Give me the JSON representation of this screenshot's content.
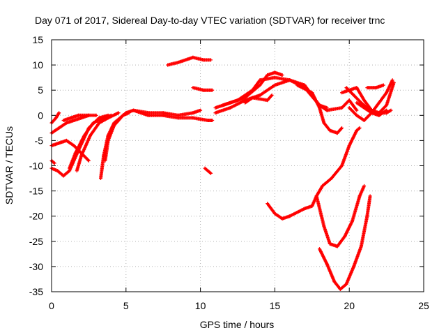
{
  "chart_data": {
    "type": "scatter",
    "title": "Day 071 of 2017, Sidereal Day-to-day VTEC variation (SDTVAR) for receiver trnc",
    "xlabel": "GPS time / hours",
    "ylabel": "SDTVAR / TECUs",
    "xlim": [
      0,
      25
    ],
    "ylim": [
      -35,
      15
    ],
    "xticks": [
      0,
      5,
      10,
      15,
      20,
      25
    ],
    "yticks": [
      -35,
      -30,
      -25,
      -20,
      -15,
      -10,
      -5,
      0,
      5,
      10,
      15
    ],
    "grid": true,
    "legend": "none",
    "marker": "plus",
    "color": "#ff0000",
    "series": [
      {
        "points": [
          [
            0.0,
            -1.5
          ],
          [
            0.3,
            -0.5
          ],
          [
            0.5,
            0.5
          ]
        ]
      },
      {
        "points": [
          [
            0.0,
            -3.5
          ],
          [
            0.5,
            -2.5
          ],
          [
            1.0,
            -1.5
          ],
          [
            1.5,
            -1.0
          ],
          [
            2.0,
            -0.5
          ],
          [
            2.5,
            0.0
          ],
          [
            3.0,
            0.0
          ]
        ]
      },
      {
        "points": [
          [
            0.0,
            -6.0
          ],
          [
            0.5,
            -5.5
          ],
          [
            1.0,
            -5.0
          ],
          [
            1.5,
            -6.0
          ],
          [
            2.0,
            -7.5
          ],
          [
            2.5,
            -9.0
          ]
        ]
      },
      {
        "points": [
          [
            0.0,
            -9.0
          ],
          [
            0.2,
            -9.5
          ]
        ]
      },
      {
        "points": [
          [
            0.0,
            -10.5
          ],
          [
            0.4,
            -11.0
          ],
          [
            0.8,
            -12.0
          ],
          [
            1.2,
            -11.0
          ],
          [
            1.8,
            -7.0
          ],
          [
            2.5,
            -2.5
          ],
          [
            3.2,
            -0.5
          ],
          [
            3.8,
            0.0
          ]
        ]
      },
      {
        "points": [
          [
            0.8,
            -1.0
          ],
          [
            1.3,
            -0.5
          ],
          [
            1.8,
            0.0
          ],
          [
            2.5,
            0.0
          ]
        ]
      },
      {
        "points": [
          [
            1.2,
            -10.5
          ],
          [
            1.6,
            -7.5
          ],
          [
            2.2,
            -4.0
          ],
          [
            2.8,
            -1.5
          ],
          [
            3.5,
            -0.5
          ],
          [
            4.0,
            0.0
          ]
        ]
      },
      {
        "points": [
          [
            1.7,
            -11.0
          ],
          [
            2.0,
            -8.0
          ],
          [
            2.6,
            -4.0
          ],
          [
            3.2,
            -1.5
          ],
          [
            3.8,
            -0.5
          ],
          [
            4.5,
            0.5
          ]
        ]
      },
      {
        "points": [
          [
            3.3,
            -12.5
          ],
          [
            3.5,
            -8.0
          ],
          [
            3.8,
            -4.0
          ],
          [
            4.2,
            -1.5
          ],
          [
            4.8,
            0.0
          ],
          [
            5.0,
            0.5
          ]
        ]
      },
      {
        "points": [
          [
            3.6,
            -9.0
          ],
          [
            3.8,
            -5.0
          ],
          [
            4.2,
            -2.0
          ],
          [
            4.8,
            0.0
          ],
          [
            5.2,
            0.5
          ]
        ]
      },
      {
        "points": [
          [
            5.0,
            0.5
          ],
          [
            5.5,
            1.0
          ],
          [
            6.5,
            0.5
          ],
          [
            7.5,
            0.5
          ],
          [
            8.5,
            0.0
          ],
          [
            9.5,
            0.5
          ],
          [
            10.0,
            1.0
          ]
        ]
      },
      {
        "points": [
          [
            5.5,
            1.0
          ],
          [
            6.5,
            0.0
          ],
          [
            7.5,
            0.0
          ],
          [
            8.5,
            -0.5
          ],
          [
            9.5,
            -0.5
          ],
          [
            10.5,
            -1.0
          ],
          [
            10.8,
            -1.0
          ]
        ]
      },
      {
        "points": [
          [
            7.8,
            10.0
          ],
          [
            8.5,
            10.5
          ],
          [
            9.5,
            11.5
          ],
          [
            10.2,
            11.0
          ],
          [
            10.7,
            11.0
          ]
        ]
      },
      {
        "points": [
          [
            9.5,
            5.5
          ],
          [
            10.2,
            5.0
          ],
          [
            10.8,
            5.0
          ]
        ]
      },
      {
        "points": [
          [
            10.3,
            -10.5
          ],
          [
            10.7,
            -11.5
          ]
        ]
      },
      {
        "points": [
          [
            11.0,
            1.5
          ],
          [
            12.0,
            2.5
          ],
          [
            13.0,
            3.5
          ],
          [
            14.0,
            6.0
          ],
          [
            14.5,
            8.0
          ],
          [
            15.0,
            8.5
          ],
          [
            15.5,
            8.0
          ]
        ]
      },
      {
        "points": [
          [
            11.0,
            0.5
          ],
          [
            12.0,
            1.5
          ],
          [
            13.0,
            3.0
          ],
          [
            14.0,
            4.0
          ],
          [
            15.0,
            6.0
          ],
          [
            16.0,
            7.0
          ],
          [
            17.0,
            6.0
          ],
          [
            17.5,
            4.0
          ],
          [
            18.0,
            2.0
          ],
          [
            18.5,
            1.5
          ]
        ]
      },
      {
        "points": [
          [
            11.5,
            2.0
          ],
          [
            12.5,
            3.0
          ],
          [
            13.5,
            5.0
          ],
          [
            14.0,
            7.0
          ],
          [
            15.0,
            7.5
          ],
          [
            16.0,
            7.0
          ],
          [
            17.0,
            5.5
          ],
          [
            18.0,
            2.0
          ],
          [
            18.5,
            1.0
          ]
        ]
      },
      {
        "points": [
          [
            13.0,
            2.5
          ],
          [
            13.5,
            3.5
          ],
          [
            14.5,
            3.0
          ],
          [
            14.8,
            4.0
          ]
        ]
      },
      {
        "points": [
          [
            16.5,
            6.0
          ],
          [
            17.5,
            4.5
          ],
          [
            18.0,
            1.5
          ],
          [
            18.3,
            -1.5
          ],
          [
            18.7,
            -3.0
          ],
          [
            19.2,
            -3.5
          ],
          [
            19.5,
            -2.5
          ]
        ]
      },
      {
        "points": [
          [
            14.5,
            -17.5
          ],
          [
            15.0,
            -19.5
          ],
          [
            15.5,
            -20.5
          ],
          [
            16.0,
            -20.0
          ],
          [
            17.0,
            -18.5
          ],
          [
            17.5,
            -18.0
          ],
          [
            17.8,
            -16.0
          ],
          [
            18.2,
            -14.0
          ],
          [
            18.8,
            -12.5
          ],
          [
            19.5,
            -10.0
          ],
          [
            20.0,
            -6.0
          ],
          [
            20.5,
            -3.0
          ],
          [
            20.7,
            -2.5
          ]
        ]
      },
      {
        "points": [
          [
            17.8,
            -16.0
          ],
          [
            18.3,
            -22.0
          ],
          [
            18.7,
            -25.5
          ],
          [
            19.2,
            -26.0
          ],
          [
            19.7,
            -24.0
          ],
          [
            20.2,
            -21.0
          ],
          [
            20.7,
            -16.0
          ],
          [
            21.0,
            -14.0
          ]
        ]
      },
      {
        "points": [
          [
            18.0,
            -26.5
          ],
          [
            18.5,
            -29.5
          ],
          [
            19.0,
            -33.0
          ],
          [
            19.4,
            -34.5
          ],
          [
            19.8,
            -33.5
          ],
          [
            20.3,
            -30.0
          ],
          [
            20.8,
            -26.0
          ],
          [
            21.2,
            -20.0
          ],
          [
            21.4,
            -16.0
          ]
        ]
      },
      {
        "points": [
          [
            19.8,
            5.5
          ],
          [
            20.3,
            4.0
          ],
          [
            20.8,
            2.5
          ],
          [
            21.2,
            1.5
          ],
          [
            21.8,
            0.5
          ],
          [
            22.5,
            0.5
          ],
          [
            22.8,
            1.0
          ]
        ]
      },
      {
        "points": [
          [
            19.5,
            4.5
          ],
          [
            20.5,
            5.5
          ],
          [
            21.0,
            3.0
          ],
          [
            21.5,
            1.0
          ],
          [
            22.0,
            0.5
          ],
          [
            22.5,
            2.0
          ],
          [
            23.0,
            6.5
          ]
        ]
      },
      {
        "points": [
          [
            20.0,
            1.5
          ],
          [
            20.5,
            0.0
          ],
          [
            21.0,
            -1.0
          ],
          [
            21.5,
            0.5
          ],
          [
            22.0,
            2.5
          ],
          [
            22.5,
            4.5
          ],
          [
            22.9,
            7.0
          ]
        ]
      },
      {
        "points": [
          [
            21.2,
            5.5
          ],
          [
            21.8,
            5.5
          ],
          [
            22.3,
            6.0
          ]
        ]
      },
      {
        "points": [
          [
            20.5,
            2.5
          ],
          [
            21.0,
            1.5
          ],
          [
            21.5,
            0.5
          ],
          [
            22.0,
            0.0
          ],
          [
            22.5,
            1.0
          ]
        ]
      },
      {
        "points": [
          [
            18.5,
            1.0
          ],
          [
            19.5,
            1.5
          ],
          [
            20.0,
            3.0
          ],
          [
            20.5,
            1.0
          ]
        ]
      }
    ]
  }
}
